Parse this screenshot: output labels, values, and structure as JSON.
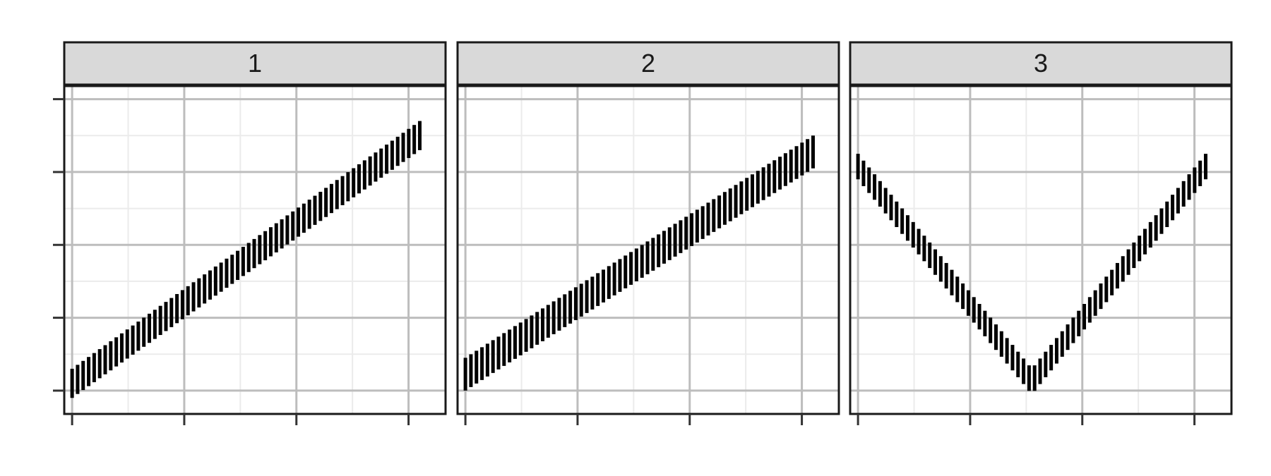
{
  "chart_data": {
    "type": "linerange",
    "facet_labels": [
      "1",
      "2",
      "3"
    ],
    "xlim": [
      -0.07,
      3.33
    ],
    "ylim": [
      -0.32,
      4.18
    ],
    "x_breaks": [
      0,
      1,
      2,
      3
    ],
    "y_breaks": [
      0,
      1,
      2,
      3,
      4
    ],
    "axis_text_shown": false,
    "grid": true,
    "panels": [
      {
        "facet": "1",
        "x": [
          0.0,
          3.1
        ],
        "segment_count": 64,
        "ymin_trend": [
          -0.1,
          3.3
        ],
        "segment_height": 0.4
      },
      {
        "facet": "2",
        "x": [
          0.0,
          3.1
        ],
        "segment_count": 64,
        "ymin_trend": [
          0.0,
          3.05
        ],
        "segment_height": 0.45
      },
      {
        "facet": "3",
        "x": [
          0.0,
          3.1
        ],
        "segment_count": 64,
        "ymin_trend_points": [
          [
            0.0,
            2.9
          ],
          [
            1.55,
            -0.05
          ],
          [
            3.1,
            2.9
          ]
        ],
        "segment_height": 0.35
      }
    ]
  }
}
